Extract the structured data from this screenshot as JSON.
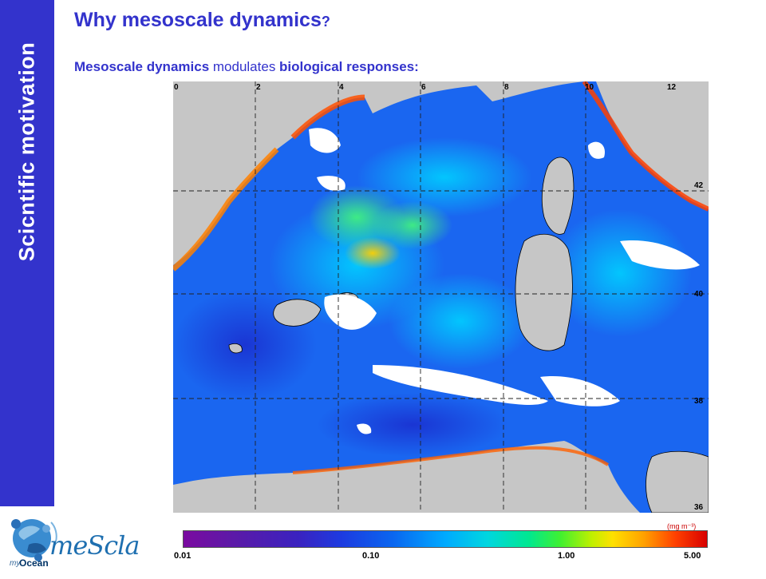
{
  "sidebar": {
    "label": "Scicntific motivation"
  },
  "header": {
    "title": "Why mesoscale dynamics",
    "title_suffix": "?",
    "subtitle_bold1": "Mesoscale dynamics",
    "subtitle_plain": " modulates ",
    "subtitle_bold2": "biological responses:"
  },
  "map": {
    "lon_labels": [
      "0",
      "2",
      "4",
      "6",
      "8",
      "10",
      "12"
    ],
    "lat_labels": [
      "42",
      "40",
      "38",
      "36"
    ]
  },
  "colorbar": {
    "units": "(mg m⁻³)",
    "ticks": [
      "0.01",
      "0.10",
      "1.00",
      "5.00"
    ]
  },
  "logos": {
    "myocean_my": "my",
    "myocean_ocean": "Ocean",
    "mescla": "meScla"
  },
  "colors": {
    "accent": "#3333cc",
    "land": "#c6c6c6"
  }
}
